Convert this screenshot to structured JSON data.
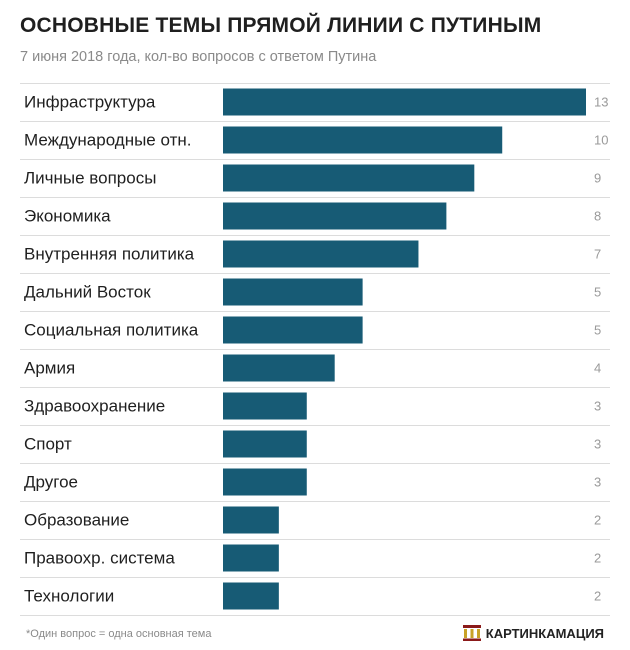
{
  "header": {
    "title": "ОСНОВНЫЕ ТЕМЫ ПРЯМОЙ ЛИНИИ С ПУТИНЫМ",
    "subtitle": "7 июня 2018 года, кол-во вопросов с ответом Путина"
  },
  "chart_data": {
    "type": "bar",
    "orientation": "horizontal",
    "title": "ОСНОВНЫЕ ТЕМЫ ПРЯМОЙ ЛИНИИ С ПУТИНЫМ",
    "subtitle": "7 июня 2018 года, кол-во вопросов с ответом Путина",
    "categories": [
      "Инфраструктура",
      "Международные отн.",
      "Личные вопросы",
      "Экономика",
      "Внутренняя политика",
      "Дальний Восток",
      "Социальная политика",
      "Армия",
      "Здравоохранение",
      "Спорт",
      "Другое",
      "Образование",
      "Правоохр. система",
      "Технологии"
    ],
    "values": [
      13,
      10,
      9,
      8,
      7,
      5,
      5,
      4,
      3,
      3,
      3,
      2,
      2,
      2
    ],
    "xlim": [
      0,
      13
    ],
    "grid": false,
    "legend": "none",
    "bar_color": "#175b75",
    "value_label_color": "#9a9a9a"
  },
  "footer": {
    "footnote": "*Один вопрос = одна основная тема",
    "brand": "КАРТИНКАМАЦИЯ",
    "brand_icon": "pillars-logo-icon"
  }
}
